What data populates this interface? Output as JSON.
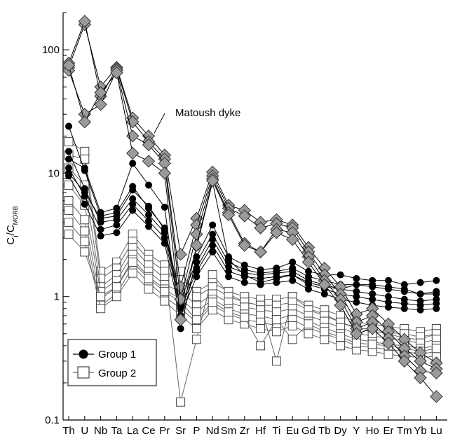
{
  "chart_data": {
    "type": "line",
    "yscale": "log",
    "ylim": [
      0.1,
      200
    ],
    "ylabel_main": "C",
    "ylabel_sub1": "i",
    "ylabel_mid": "/C",
    "ylabel_sub2": "MORB",
    "yticks": [
      {
        "value": 0.1,
        "label": "0.1"
      },
      {
        "value": 1,
        "label": "1"
      },
      {
        "value": 10,
        "label": "10"
      },
      {
        "value": 100,
        "label": "100"
      }
    ],
    "categories": [
      "Th",
      "U",
      "Nb",
      "Ta",
      "La",
      "Ce",
      "Pr",
      "Sr",
      "P",
      "Nd",
      "Sm",
      "Zr",
      "Hf",
      "Ti",
      "Eu",
      "Gd",
      "Tb",
      "Dy",
      "Y",
      "Ho",
      "Er",
      "Tm",
      "Yb",
      "Lu"
    ],
    "legend": [
      {
        "label": "Group 1",
        "marker": "filled-circle"
      },
      {
        "label": "Group 2",
        "marker": "open-square"
      }
    ],
    "annotation": "Matoush dyke",
    "colors": {
      "group1_line": "#000000",
      "group2_line": "#666666",
      "matoush_fill": "#9a9a9a",
      "matoush_line": "#000000"
    },
    "series_group1": [
      [
        24,
        10.5,
        4.5,
        4.8,
        7.8,
        5.2,
        3.6,
        0.95,
        1.9,
        3.2,
        1.9,
        1.65,
        1.55,
        1.6,
        1.7,
        1.45,
        1.35,
        1.25,
        1.25,
        1.2,
        1.15,
        1.1,
        1.05,
        1.1
      ],
      [
        15,
        7.5,
        4.0,
        4.2,
        6.2,
        4.6,
        3.3,
        0.85,
        1.7,
        2.9,
        1.75,
        1.55,
        1.5,
        1.55,
        1.6,
        1.35,
        1.25,
        1.15,
        1.1,
        1.05,
        1.0,
        0.95,
        0.92,
        0.95
      ],
      [
        11,
        6.5,
        3.5,
        3.8,
        5.6,
        4.1,
        3.0,
        0.8,
        1.6,
        2.6,
        1.6,
        1.45,
        1.4,
        1.45,
        1.5,
        1.25,
        1.15,
        1.05,
        1.0,
        0.95,
        0.9,
        0.88,
        0.85,
        0.88
      ],
      [
        9.5,
        5.6,
        3.1,
        3.3,
        5.0,
        3.7,
        2.7,
        0.7,
        1.45,
        2.3,
        1.45,
        1.3,
        1.25,
        1.3,
        1.35,
        1.15,
        1.05,
        0.95,
        0.9,
        0.85,
        0.82,
        0.8,
        0.78,
        0.8
      ],
      [
        13,
        11,
        4.8,
        5.2,
        12,
        8,
        5.3,
        0.55,
        2.1,
        3.8,
        2.1,
        1.8,
        1.65,
        1.7,
        1.9,
        1.6,
        1.5,
        1.5,
        1.4,
        1.35,
        1.35,
        1.25,
        1.3,
        1.35
      ],
      [
        10,
        7,
        4.3,
        4.5,
        7.3,
        5.4,
        3.5,
        0.85,
        2.5,
        8.5,
        2.0,
        1.5,
        1.3,
        1.4,
        1.5,
        1.3,
        1.2,
        1.15,
        1.25,
        1.25,
        1.2,
        1.15,
        1.05,
        1.05
      ]
    ],
    "series_group2": [
      [
        18,
        15,
        1.6,
        1.9,
        3.2,
        2.2,
        1.8,
        0.14,
        0.45,
        1.5,
        1.05,
        0.9,
        0.85,
        0.3,
        1.0,
        0.8,
        0.72,
        0.62,
        0.55,
        0.52,
        0.5,
        0.46,
        0.45,
        0.5
      ],
      [
        14,
        13,
        1.4,
        1.7,
        2.8,
        2.0,
        1.6,
        1.4,
        1.1,
        1.3,
        1.1,
        1.0,
        0.95,
        0.95,
        1.0,
        0.85,
        0.78,
        0.7,
        0.62,
        0.6,
        0.57,
        0.55,
        0.52,
        0.55
      ],
      [
        11,
        8,
        1.2,
        1.5,
        2.5,
        1.8,
        1.4,
        1.6,
        1.0,
        1.2,
        1.0,
        0.9,
        0.85,
        0.85,
        0.9,
        0.78,
        0.7,
        0.62,
        0.56,
        0.54,
        0.51,
        0.5,
        0.47,
        0.5
      ],
      [
        8,
        5.5,
        1.1,
        1.35,
        2.2,
        1.6,
        1.25,
        1.1,
        0.85,
        1.05,
        0.9,
        0.82,
        0.78,
        0.75,
        0.8,
        0.7,
        0.63,
        0.56,
        0.5,
        0.48,
        0.46,
        0.44,
        0.42,
        0.45
      ],
      [
        6,
        4.2,
        0.95,
        1.2,
        2.0,
        1.45,
        1.15,
        0.95,
        0.75,
        0.95,
        0.8,
        0.72,
        0.7,
        0.65,
        0.72,
        0.63,
        0.56,
        0.5,
        0.45,
        0.43,
        0.41,
        0.4,
        0.38,
        0.4
      ],
      [
        5,
        3.4,
        0.85,
        1.05,
        1.75,
        1.3,
        1.0,
        0.8,
        0.62,
        0.85,
        0.72,
        0.65,
        0.62,
        0.58,
        0.65,
        0.56,
        0.5,
        0.45,
        0.4,
        0.39,
        0.37,
        0.36,
        0.34,
        0.36
      ],
      [
        4,
        2.8,
        0.8,
        1.0,
        1.55,
        1.15,
        0.92,
        0.7,
        0.55,
        0.78,
        0.65,
        0.6,
        0.55,
        0.52,
        0.58,
        0.5,
        0.45,
        0.4,
        0.37,
        0.36,
        0.34,
        0.33,
        0.32,
        0.33
      ],
      [
        3.2,
        2.3,
        1.0,
        1.2,
        1.9,
        1.4,
        1.1,
        0.9,
        0.65,
        0.9,
        0.75,
        0.68,
        0.4,
        0.65,
        0.45,
        0.6,
        0.52,
        0.47,
        0.42,
        0.41,
        0.4,
        0.38,
        0.36,
        0.38
      ]
    ],
    "series_matoush": [
      [
        72,
        160,
        50,
        72,
        28,
        20,
        14,
        2.2,
        4.3,
        10.2,
        5.5,
        5.0,
        4.0,
        4.2,
        3.8,
        2.5,
        1.7,
        1.2,
        0.72,
        0.8,
        0.6,
        0.45,
        0.35,
        0.29
      ],
      [
        78,
        170,
        42,
        70,
        26,
        18,
        13,
        1.2,
        3.8,
        9.5,
        5.2,
        4.5,
        3.6,
        3.9,
        3.6,
        2.3,
        1.5,
        1.05,
        0.62,
        0.7,
        0.52,
        0.38,
        0.3,
        0.26
      ],
      [
        68,
        30,
        36,
        68,
        20,
        17,
        12,
        0.95,
        3.2,
        9.0,
        4.8,
        2.7,
        2.3,
        3.5,
        3.3,
        2.1,
        1.35,
        0.95,
        0.55,
        0.62,
        0.46,
        0.33,
        0.25,
        0.24
      ],
      [
        75,
        26,
        45,
        65,
        14.5,
        12.5,
        10,
        0.65,
        2.6,
        8.7,
        4.6,
        2.6,
        2.3,
        3.3,
        2.9,
        1.9,
        1.25,
        0.85,
        0.5,
        0.55,
        0.42,
        0.3,
        0.22,
        0.155
      ]
    ]
  }
}
